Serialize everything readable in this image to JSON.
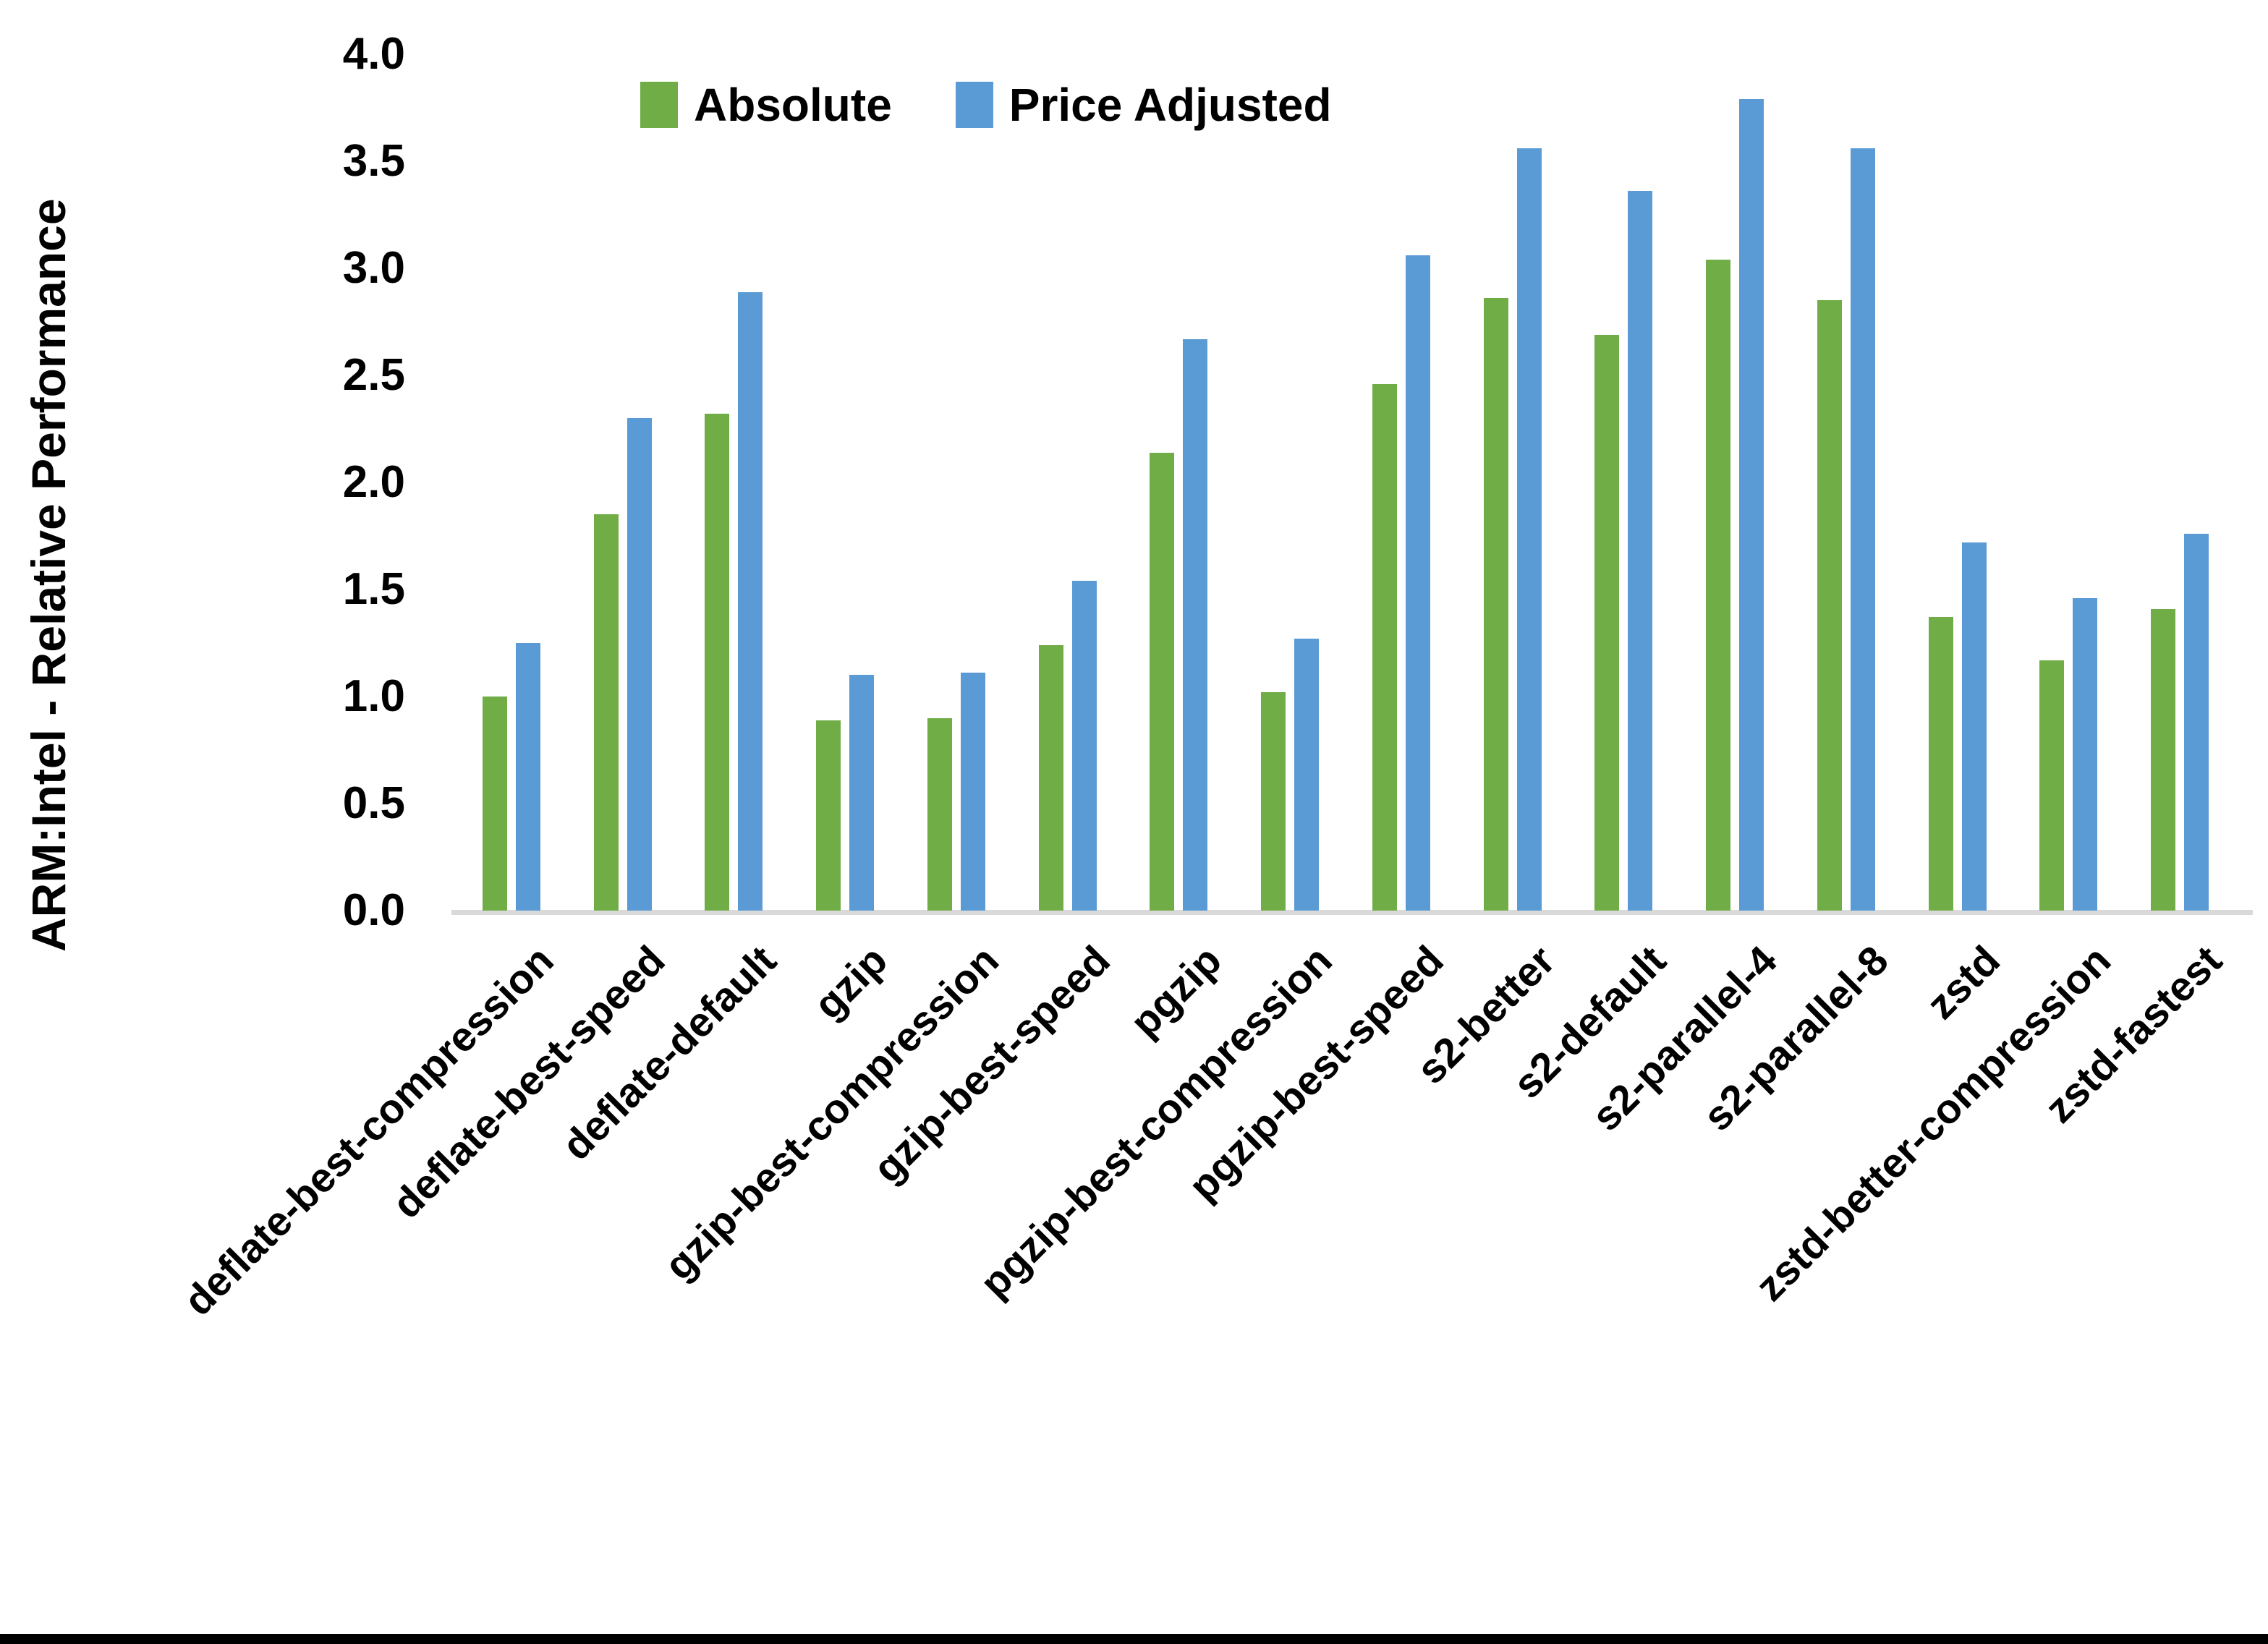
{
  "y_axis": {
    "title": "ARM:Intel - Relative Performance",
    "min": 0.0,
    "max": 4.0,
    "step": 0.5,
    "tick_labels": [
      "0.0",
      "0.5",
      "1.0",
      "1.5",
      "2.0",
      "2.5",
      "3.0",
      "3.5",
      "4.0"
    ]
  },
  "legend": {
    "position": "top",
    "items": [
      {
        "label": "Absolute",
        "color": "#70AD47"
      },
      {
        "label": "Price Adjusted",
        "color": "#5B9BD5"
      }
    ]
  },
  "colors": {
    "absolute_green": "#70AD47",
    "price_adjusted_blue": "#5B9BD5",
    "axis_line_gray": "#D9D9D9",
    "text_black": "#000000",
    "background": "#FFFFFF"
  },
  "chart_data": {
    "type": "bar",
    "title": "",
    "xlabel": "",
    "ylabel": "ARM:Intel - Relative Performance",
    "ylim": [
      0.0,
      4.0
    ],
    "ytick_step": 0.5,
    "grid": false,
    "legend_position": "top-center",
    "categories": [
      "deflate-best-compression",
      "deflate-best-speed",
      "deflate-default",
      "gzip",
      "gzip-best-compression",
      "gzip-best-speed",
      "pgzip",
      "pgzip-best-compression",
      "pgzip-best-speed",
      "s2-better",
      "s2-default",
      "s2-parallel-4",
      "s2-parallel-8",
      "zstd",
      "zstd-better-compression",
      "zstd-fastest"
    ],
    "series": [
      {
        "name": "Absolute",
        "color": "#70AD47",
        "values": [
          1.0,
          1.85,
          2.32,
          0.89,
          0.9,
          1.24,
          2.14,
          1.02,
          2.46,
          2.86,
          2.69,
          3.04,
          2.85,
          1.37,
          1.17,
          1.41
        ]
      },
      {
        "name": "Price Adjusted",
        "color": "#5B9BD5",
        "values": [
          1.25,
          2.3,
          2.89,
          1.1,
          1.11,
          1.54,
          2.67,
          1.27,
          3.06,
          3.56,
          3.36,
          3.79,
          3.56,
          1.72,
          1.46,
          1.76
        ]
      }
    ]
  }
}
